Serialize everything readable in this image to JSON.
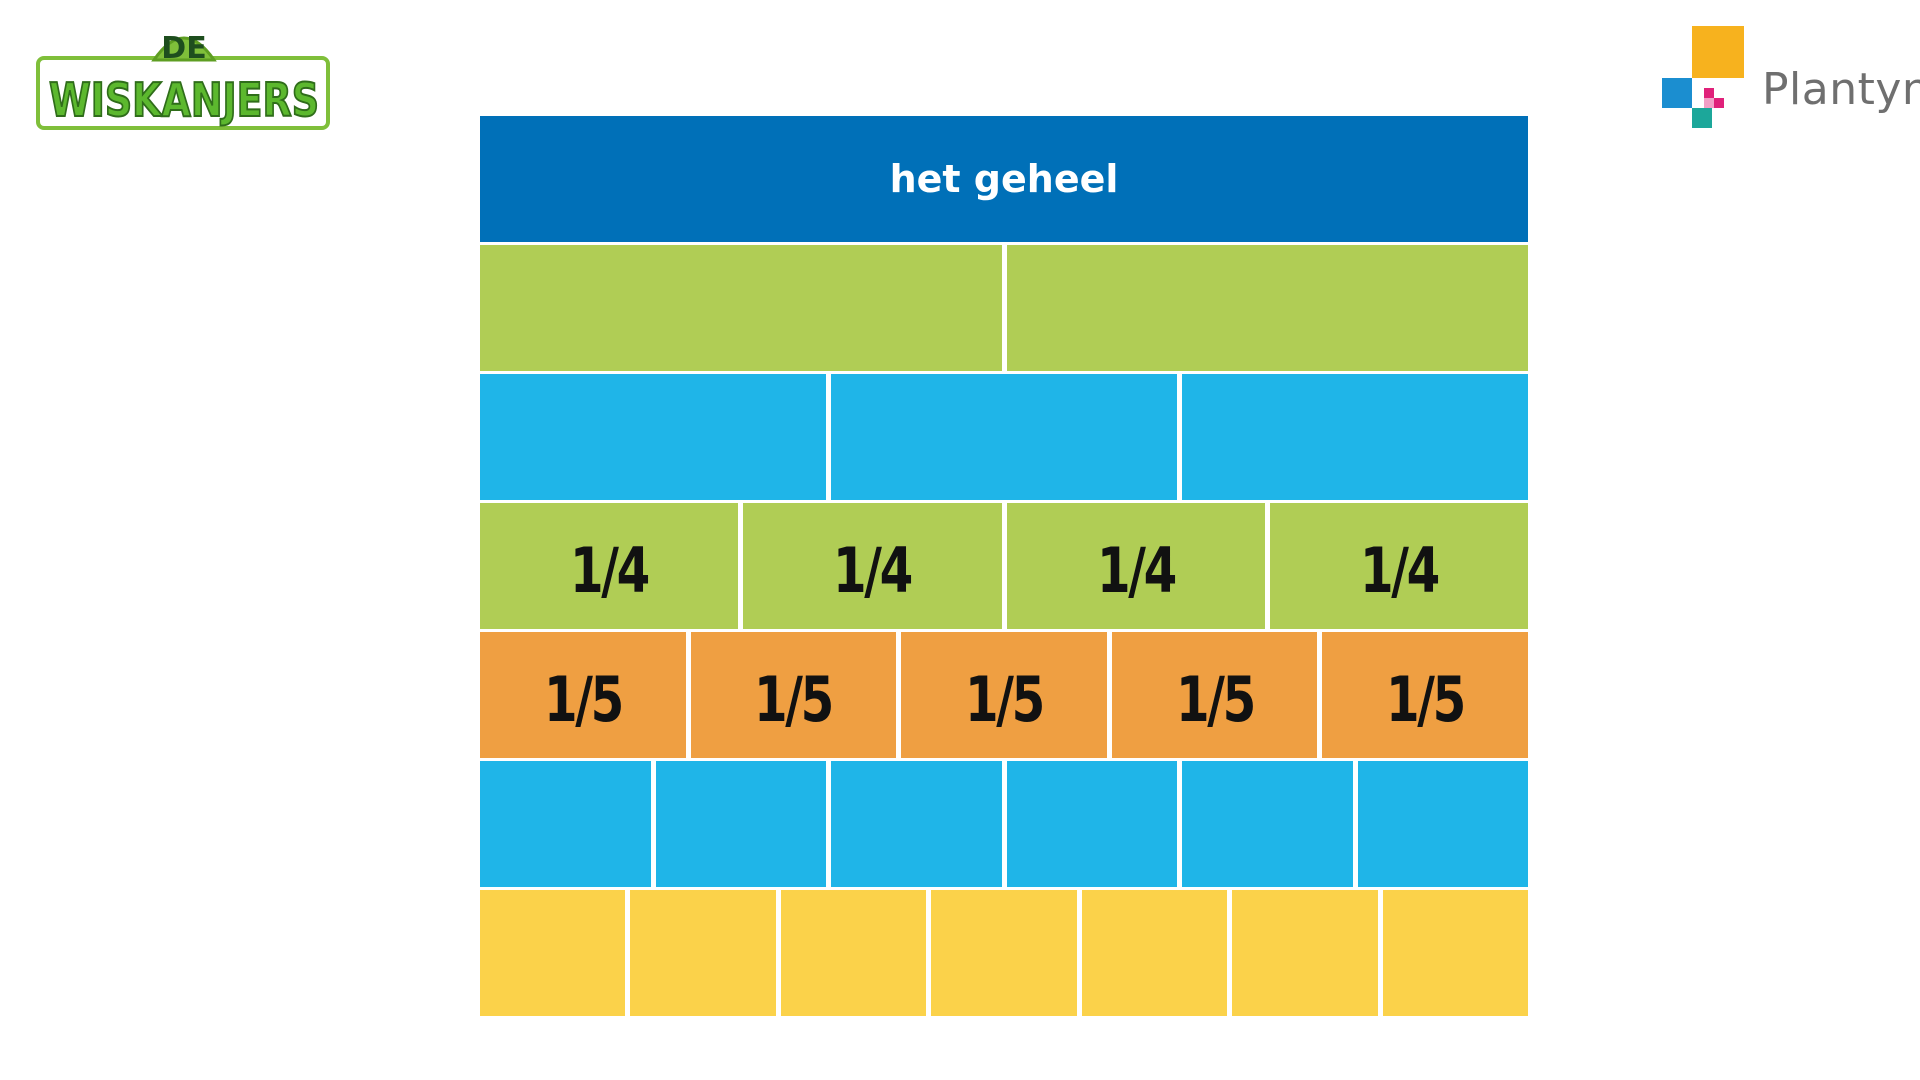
{
  "logos": {
    "left": {
      "text_top": "DE",
      "text_main": "WISKANJERS"
    },
    "right": {
      "name": "Plantyn"
    }
  },
  "wall": {
    "whole_label": "het geheel",
    "halves": [
      "",
      ""
    ],
    "thirds": [
      "",
      "",
      ""
    ],
    "quarters": [
      "1/4",
      "1/4",
      "1/4",
      "1/4"
    ],
    "fifths": [
      "1/5",
      "1/5",
      "1/5",
      "1/5",
      "1/5"
    ],
    "sixths": [
      "",
      "",
      "",
      "",
      "",
      ""
    ],
    "sevenths": [
      "",
      "",
      "",
      "",
      "",
      "",
      ""
    ]
  },
  "colors": {
    "whole": "#0070b8",
    "green": "#b0cd55",
    "cyan": "#1fb5e8",
    "orange": "#ef9f42",
    "yellow": "#fbd24a"
  }
}
